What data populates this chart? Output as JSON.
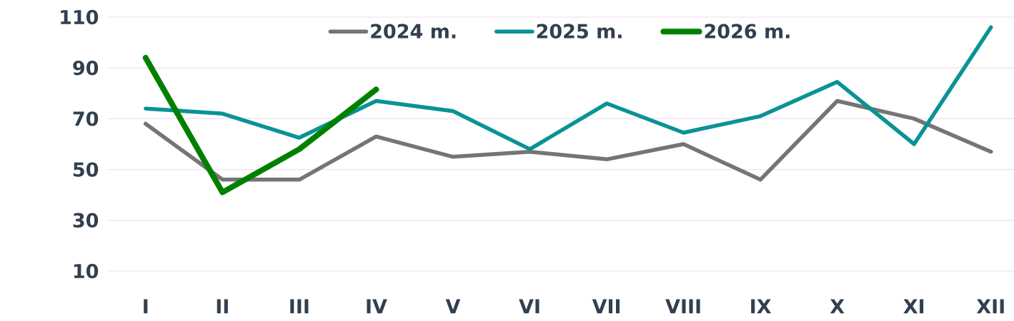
{
  "chart_data": {
    "type": "line",
    "categories": [
      "I",
      "II",
      "III",
      "IV",
      "V",
      "VI",
      "VII",
      "VIII",
      "IX",
      "X",
      "XI",
      "XII"
    ],
    "series": [
      {
        "name": "2024 m.",
        "color": "#757575",
        "values": [
          68,
          46,
          46,
          63,
          55,
          57,
          54,
          60,
          46,
          77,
          70,
          57
        ]
      },
      {
        "name": "2025 m.",
        "color": "#0a9396",
        "values": [
          74,
          72,
          62.5,
          77,
          73,
          58,
          76,
          64.5,
          71,
          84.5,
          60,
          106
        ]
      },
      {
        "name": "2026 m.",
        "color": "#008000",
        "values": [
          94,
          41,
          58,
          81.5,
          null,
          null,
          null,
          null,
          null,
          null,
          null,
          null
        ]
      }
    ],
    "ylim": [
      10,
      110
    ],
    "yticks": [
      10,
      30,
      50,
      70,
      90,
      110
    ],
    "grid": "y",
    "legend": "top",
    "marker": "none",
    "line_style": "solid"
  }
}
